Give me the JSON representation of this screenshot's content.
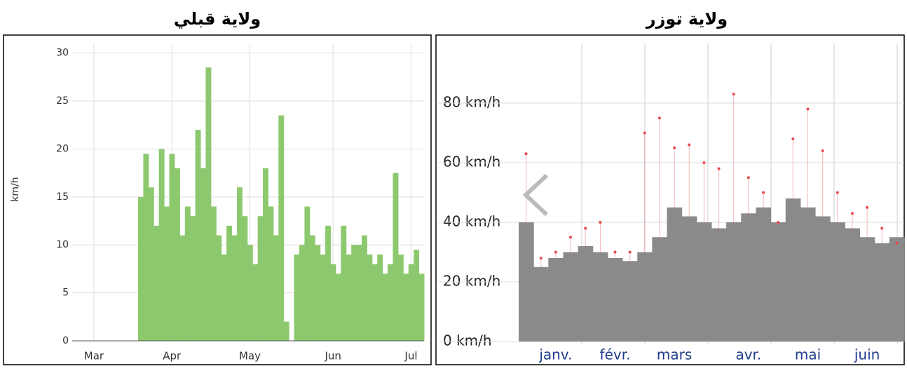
{
  "chart_data": [
    {
      "type": "bar",
      "title": "ولاية قبلي",
      "ylabel": "km/h",
      "color": "#8cc96e",
      "grid": true,
      "categories": [
        null,
        null,
        null,
        "Mar",
        null,
        null,
        null,
        null,
        null,
        null,
        null,
        null,
        null,
        null,
        null,
        null,
        null,
        null,
        "Apr",
        null,
        null,
        null,
        null,
        null,
        null,
        null,
        null,
        null,
        null,
        null,
        null,
        null,
        null,
        "May",
        null,
        null,
        null,
        null,
        null,
        null,
        null,
        null,
        null,
        null,
        null,
        null,
        null,
        null,
        null,
        "Jun",
        null,
        null,
        null,
        null,
        null,
        null,
        null,
        null,
        null,
        null,
        null,
        null,
        null,
        null,
        "Jul",
        null,
        null
      ],
      "values": [
        0,
        0,
        0,
        0,
        0,
        0,
        0,
        0,
        0,
        0,
        0,
        0,
        15,
        19.5,
        16,
        12,
        20,
        14,
        19.5,
        18,
        11,
        14,
        13,
        22,
        18,
        28.5,
        14,
        11,
        9,
        12,
        11,
        16,
        13,
        10,
        8,
        13,
        18,
        14,
        11,
        23.5,
        2,
        0,
        9,
        10,
        14,
        11,
        10,
        9,
        12,
        8,
        7,
        12,
        9,
        10,
        10,
        11,
        9,
        8,
        9,
        7,
        8,
        17.5,
        9,
        7,
        8,
        9.5,
        7
      ],
      "ylim": [
        0,
        31
      ],
      "yticks": [
        0,
        5,
        10,
        15,
        20,
        25,
        30
      ]
    },
    {
      "type": "bar",
      "title": "ولاية توزر",
      "grid": true,
      "categories": [
        null,
        null,
        "janv.",
        null,
        null,
        null,
        "févr.",
        null,
        null,
        null,
        "mars",
        null,
        null,
        null,
        null,
        "avr.",
        null,
        null,
        null,
        "mai",
        null,
        null,
        null,
        "juin",
        null,
        null
      ],
      "series": [
        {
          "style": "bar",
          "color": "#8a8a8a",
          "values": [
            40,
            25,
            28,
            30,
            32,
            30,
            28,
            27,
            30,
            35,
            45,
            42,
            40,
            38,
            40,
            43,
            45,
            40,
            48,
            45,
            42,
            40,
            38,
            35,
            33,
            35
          ]
        },
        {
          "style": "point",
          "color": "#e84a4a",
          "values": [
            63,
            28,
            30,
            35,
            38,
            40,
            30,
            30,
            70,
            75,
            65,
            66,
            60,
            58,
            83,
            55,
            50,
            40,
            68,
            78,
            64,
            50,
            43,
            45,
            38,
            33
          ]
        }
      ],
      "ylim": [
        0,
        100
      ],
      "yticks": [
        {
          "value": 0,
          "label": "0 km/h"
        },
        {
          "value": 20,
          "label": "20 km/h"
        },
        {
          "value": 40,
          "label": "40 km/h"
        },
        {
          "value": 60,
          "label": "60 km/h"
        },
        {
          "value": 80,
          "label": "80 km/h"
        }
      ]
    }
  ]
}
